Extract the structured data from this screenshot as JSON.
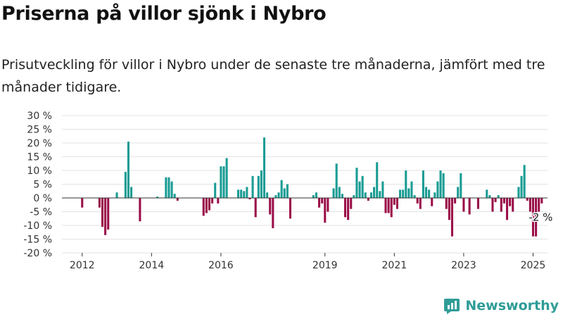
{
  "header": {
    "title": "Priserna på villor sjönk i Nybro",
    "subtitle": "Prisutveckling för villor i Nybro under de senaste tre månaderna, jämfört med tre månader tidigare."
  },
  "brand": {
    "name": "Newsworthy",
    "icon": "newsworthy-logo-icon"
  },
  "colors": {
    "positive": "#1a9c94",
    "negative": "#9b0f49",
    "grid": "#e3e3e3",
    "brand": "#2f9c97"
  },
  "chart_data": {
    "type": "bar",
    "title": "Priserna på villor sjönk i Nybro",
    "ylabel": "",
    "xlabel": "",
    "ylim": [
      -20,
      30
    ],
    "yticks": [
      -20,
      -15,
      -10,
      -5,
      0,
      5,
      10,
      15,
      20,
      25,
      30
    ],
    "y_tick_labels": [
      "-20 %",
      "-15 %",
      "-10 %",
      "-5 %",
      "0 %",
      "5 %",
      "10 %",
      "15 %",
      "20 %",
      "25 %",
      "30 %"
    ],
    "xlim": [
      "2011-06",
      "2025-06"
    ],
    "x_tick_labels": [
      "2012",
      "2014",
      "2016",
      "2019",
      "2021",
      "2023",
      "2025"
    ],
    "x_tick_positions": [
      "2012-01",
      "2014-01",
      "2016-01",
      "2019-01",
      "2021-01",
      "2023-01",
      "2025-01"
    ],
    "grid": true,
    "annotation": {
      "text": "-2 %",
      "date": "2025-01"
    },
    "series": [
      {
        "values": [
          {
            "date": "2012-01",
            "value": -3.5
          },
          {
            "date": "2012-07",
            "value": -3.5
          },
          {
            "date": "2012-08",
            "value": -10.5
          },
          {
            "date": "2012-09",
            "value": -13.5
          },
          {
            "date": "2012-10",
            "value": -11.5
          },
          {
            "date": "2013-01",
            "value": 2
          },
          {
            "date": "2013-04",
            "value": 9.5
          },
          {
            "date": "2013-05",
            "value": 20.5
          },
          {
            "date": "2013-06",
            "value": 4
          },
          {
            "date": "2013-09",
            "value": -8.5
          },
          {
            "date": "2014-03",
            "value": 0.5
          },
          {
            "date": "2014-06",
            "value": 7.5
          },
          {
            "date": "2014-07",
            "value": 7.5
          },
          {
            "date": "2014-08",
            "value": 6
          },
          {
            "date": "2014-09",
            "value": 1.5
          },
          {
            "date": "2014-10",
            "value": -1
          },
          {
            "date": "2015-07",
            "value": -6.5
          },
          {
            "date": "2015-08",
            "value": -5.5
          },
          {
            "date": "2015-09",
            "value": -4.5
          },
          {
            "date": "2015-10",
            "value": -2
          },
          {
            "date": "2015-11",
            "value": 5.5
          },
          {
            "date": "2015-12",
            "value": -2
          },
          {
            "date": "2016-01",
            "value": 11.5
          },
          {
            "date": "2016-02",
            "value": 11.5
          },
          {
            "date": "2016-03",
            "value": 14.5
          },
          {
            "date": "2016-07",
            "value": 3
          },
          {
            "date": "2016-08",
            "value": 3
          },
          {
            "date": "2016-09",
            "value": 2.5
          },
          {
            "date": "2016-10",
            "value": 4
          },
          {
            "date": "2016-11",
            "value": -0.5
          },
          {
            "date": "2016-12",
            "value": 8
          },
          {
            "date": "2017-01",
            "value": -7
          },
          {
            "date": "2017-02",
            "value": 8
          },
          {
            "date": "2017-03",
            "value": 10
          },
          {
            "date": "2017-04",
            "value": 22
          },
          {
            "date": "2017-05",
            "value": 2
          },
          {
            "date": "2017-06",
            "value": -6
          },
          {
            "date": "2017-07",
            "value": -11
          },
          {
            "date": "2017-08",
            "value": 1
          },
          {
            "date": "2017-09",
            "value": 2
          },
          {
            "date": "2017-10",
            "value": 6.5
          },
          {
            "date": "2017-11",
            "value": 3.5
          },
          {
            "date": "2017-12",
            "value": 5
          },
          {
            "date": "2018-01",
            "value": -7.5
          },
          {
            "date": "2018-09",
            "value": 1
          },
          {
            "date": "2018-10",
            "value": 2
          },
          {
            "date": "2018-11",
            "value": -3.5
          },
          {
            "date": "2018-12",
            "value": -2
          },
          {
            "date": "2019-01",
            "value": -9
          },
          {
            "date": "2019-02",
            "value": -5
          },
          {
            "date": "2019-04",
            "value": 3.5
          },
          {
            "date": "2019-05",
            "value": 12.5
          },
          {
            "date": "2019-06",
            "value": 4
          },
          {
            "date": "2019-07",
            "value": 1.5
          },
          {
            "date": "2019-08",
            "value": -7
          },
          {
            "date": "2019-09",
            "value": -8
          },
          {
            "date": "2019-10",
            "value": -4
          },
          {
            "date": "2019-11",
            "value": 1
          },
          {
            "date": "2019-12",
            "value": 11
          },
          {
            "date": "2020-01",
            "value": 6
          },
          {
            "date": "2020-02",
            "value": 8
          },
          {
            "date": "2020-03",
            "value": 2
          },
          {
            "date": "2020-04",
            "value": -1
          },
          {
            "date": "2020-05",
            "value": 2
          },
          {
            "date": "2020-06",
            "value": 4
          },
          {
            "date": "2020-07",
            "value": 13
          },
          {
            "date": "2020-08",
            "value": 2.5
          },
          {
            "date": "2020-09",
            "value": 6
          },
          {
            "date": "2020-10",
            "value": -5.5
          },
          {
            "date": "2020-11",
            "value": -5.5
          },
          {
            "date": "2020-12",
            "value": -7
          },
          {
            "date": "2021-01",
            "value": -2.5
          },
          {
            "date": "2021-02",
            "value": -4
          },
          {
            "date": "2021-03",
            "value": 3
          },
          {
            "date": "2021-04",
            "value": 3
          },
          {
            "date": "2021-05",
            "value": 10
          },
          {
            "date": "2021-06",
            "value": 3.5
          },
          {
            "date": "2021-07",
            "value": 6
          },
          {
            "date": "2021-08",
            "value": 1
          },
          {
            "date": "2021-09",
            "value": -2
          },
          {
            "date": "2021-10",
            "value": -4
          },
          {
            "date": "2021-11",
            "value": 10
          },
          {
            "date": "2021-12",
            "value": 4
          },
          {
            "date": "2022-01",
            "value": 3
          },
          {
            "date": "2022-02",
            "value": -3
          },
          {
            "date": "2022-03",
            "value": 2
          },
          {
            "date": "2022-04",
            "value": 6
          },
          {
            "date": "2022-05",
            "value": 10
          },
          {
            "date": "2022-06",
            "value": 9
          },
          {
            "date": "2022-07",
            "value": -4
          },
          {
            "date": "2022-08",
            "value": -8
          },
          {
            "date": "2022-09",
            "value": -14
          },
          {
            "date": "2022-10",
            "value": -2
          },
          {
            "date": "2022-11",
            "value": 4
          },
          {
            "date": "2022-12",
            "value": 9
          },
          {
            "date": "2023-01",
            "value": -5
          },
          {
            "date": "2023-03",
            "value": -6
          },
          {
            "date": "2023-06",
            "value": -4
          },
          {
            "date": "2023-09",
            "value": 3
          },
          {
            "date": "2023-10",
            "value": 1
          },
          {
            "date": "2023-11",
            "value": -5
          },
          {
            "date": "2023-12",
            "value": -1.5
          },
          {
            "date": "2024-01",
            "value": 1
          },
          {
            "date": "2024-02",
            "value": -5
          },
          {
            "date": "2024-03",
            "value": -2
          },
          {
            "date": "2024-04",
            "value": -8
          },
          {
            "date": "2024-05",
            "value": -3
          },
          {
            "date": "2024-06",
            "value": -5
          },
          {
            "date": "2024-08",
            "value": 4
          },
          {
            "date": "2024-09",
            "value": 8
          },
          {
            "date": "2024-10",
            "value": 12
          },
          {
            "date": "2024-11",
            "value": -1
          },
          {
            "date": "2024-12",
            "value": -5
          },
          {
            "date": "2025-01",
            "value": -14
          },
          {
            "date": "2025-02",
            "value": -14
          },
          {
            "date": "2025-03",
            "value": -5
          },
          {
            "date": "2025-04",
            "value": -2
          }
        ]
      }
    ]
  }
}
